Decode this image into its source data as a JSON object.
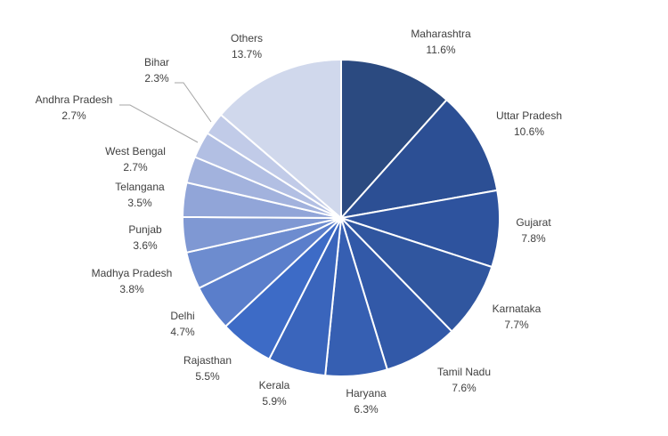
{
  "chart_data": {
    "type": "pie",
    "categories": [
      "Maharashtra",
      "Uttar Pradesh",
      "Gujarat",
      "Karnataka",
      "Tamil Nadu",
      "Haryana",
      "Kerala",
      "Rajasthan",
      "Delhi",
      "Madhya Pradesh",
      "Punjab",
      "Telangana",
      "West Bengal",
      "Andhra Pradesh",
      "Bihar",
      "Others"
    ],
    "values": [
      11.6,
      10.6,
      7.8,
      7.7,
      7.6,
      6.3,
      5.9,
      5.5,
      4.7,
      3.8,
      3.6,
      3.5,
      2.7,
      2.7,
      2.3,
      13.7
    ],
    "value_labels": [
      "11.6%",
      "10.6%",
      "7.8%",
      "7.7%",
      "7.6%",
      "6.3%",
      "5.9%",
      "5.5%",
      "4.7%",
      "3.8%",
      "3.6%",
      "3.5%",
      "2.7%",
      "2.7%",
      "2.3%",
      "13.7%"
    ],
    "colors": [
      "#2b4a80",
      "#2c4f94",
      "#2e539e",
      "#30569f",
      "#3259a8",
      "#365fb2",
      "#3a65bc",
      "#3d6bc6",
      "#5a7ecb",
      "#6d8ccf",
      "#7f98d3",
      "#91a5d8",
      "#a2b2dd",
      "#b2bfe3",
      "#c1cbe8",
      "#d0d8ec"
    ]
  }
}
